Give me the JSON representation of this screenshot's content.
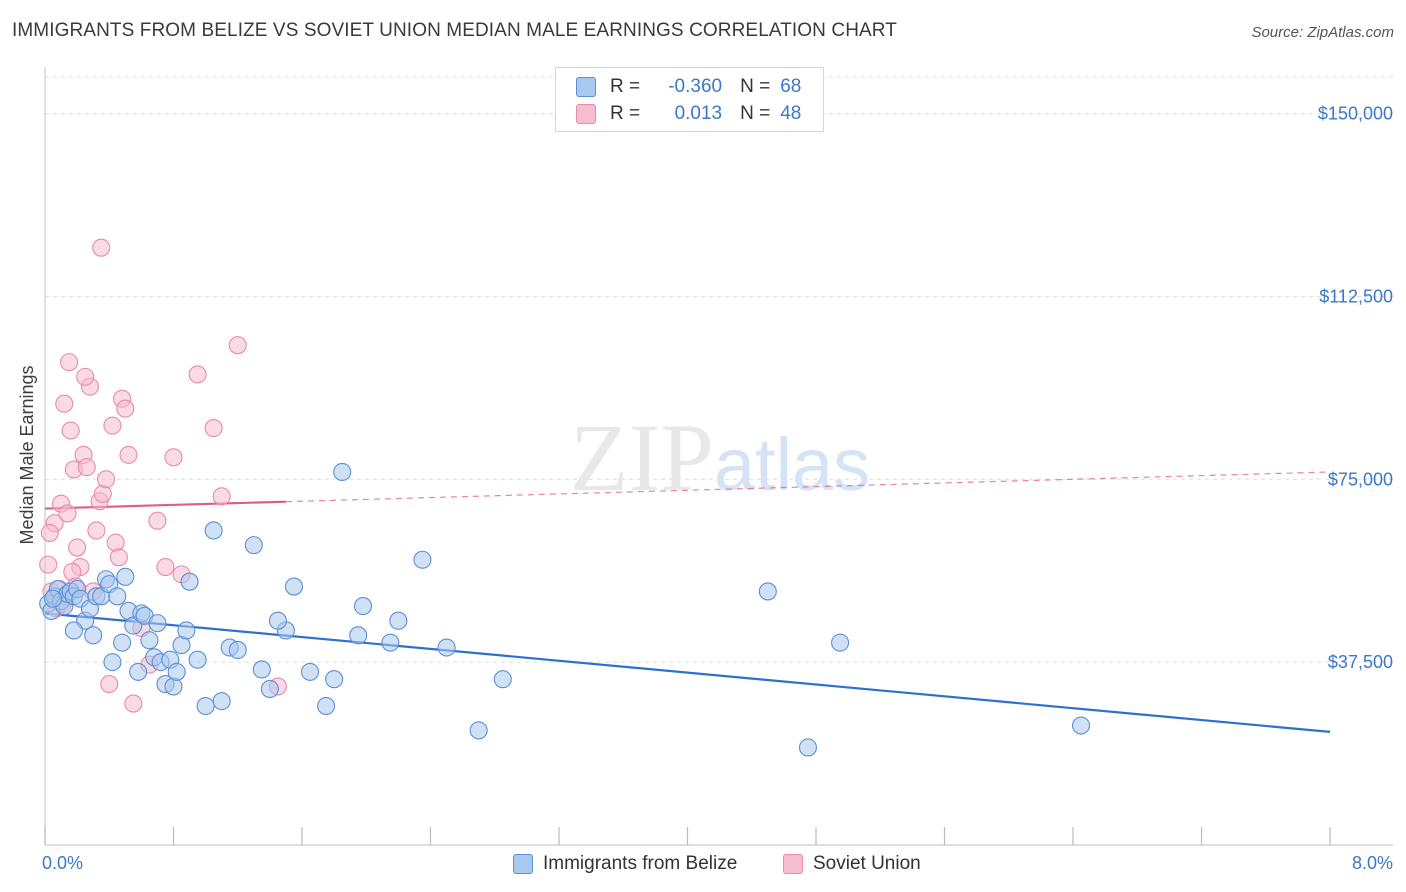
{
  "title": "IMMIGRANTS FROM BELIZE VS SOVIET UNION MEDIAN MALE EARNINGS CORRELATION CHART",
  "source": "Source: ZipAtlas.com",
  "watermark": "ZIPatlas",
  "colors": {
    "blue_fill": "#a9c8ef",
    "blue_stroke": "#5b8fd6",
    "blue_line": "#2f6fd0",
    "pink_fill": "#f6bcd0",
    "pink_stroke": "#e98aab",
    "pink_line": "#e05a8a",
    "tick_text": "#3b78c9",
    "grid": "#dddddd"
  },
  "legend": {
    "rows": [
      {
        "r_label": "R =",
        "r_value": "-0.360",
        "n_label": "N =",
        "n_value": "68"
      },
      {
        "r_label": "R =",
        "r_value": "0.013",
        "n_label": "N =",
        "n_value": "48"
      }
    ]
  },
  "chart_data": {
    "type": "scatter",
    "title": "IMMIGRANTS FROM BELIZE VS SOVIET UNION MEDIAN MALE EARNINGS CORRELATION CHART",
    "xlabel": "",
    "ylabel": "Median Male Earnings",
    "xlim": [
      0,
      8.0
    ],
    "ylim": [
      0,
      157500
    ],
    "x_tick_labels": [
      "0.0%",
      "8.0%"
    ],
    "y_ticks": [
      {
        "value": 37500,
        "label": "$37,500"
      },
      {
        "value": 75000,
        "label": "$75,000"
      },
      {
        "value": 112500,
        "label": "$112,500"
      },
      {
        "value": 150000,
        "label": "$150,000"
      }
    ],
    "series": [
      {
        "name": "Immigrants from Belize",
        "color": "blue",
        "trend": {
          "x_start": 0.0,
          "y_start": 47500,
          "x_end": 8.0,
          "y_end": 23200,
          "dashed_from": null
        },
        "points": [
          [
            0.02,
            49500
          ],
          [
            0.04,
            48000
          ],
          [
            0.06,
            51000
          ],
          [
            0.08,
            52500
          ],
          [
            0.1,
            50000
          ],
          [
            0.12,
            49000
          ],
          [
            0.14,
            51500
          ],
          [
            0.16,
            52000
          ],
          [
            0.18,
            51000
          ],
          [
            0.2,
            52500
          ],
          [
            0.22,
            50500
          ],
          [
            0.25,
            46000
          ],
          [
            0.18,
            44000
          ],
          [
            0.28,
            48500
          ],
          [
            0.3,
            43000
          ],
          [
            0.32,
            51000
          ],
          [
            0.35,
            51000
          ],
          [
            0.38,
            54500
          ],
          [
            0.4,
            53500
          ],
          [
            0.42,
            37500
          ],
          [
            0.45,
            51000
          ],
          [
            0.48,
            41500
          ],
          [
            0.5,
            55000
          ],
          [
            0.52,
            48000
          ],
          [
            0.55,
            45000
          ],
          [
            0.58,
            35500
          ],
          [
            0.6,
            47500
          ],
          [
            0.62,
            47000
          ],
          [
            0.65,
            42000
          ],
          [
            0.68,
            38500
          ],
          [
            0.7,
            45500
          ],
          [
            0.72,
            37500
          ],
          [
            0.75,
            33000
          ],
          [
            0.78,
            38000
          ],
          [
            0.8,
            32500
          ],
          [
            0.82,
            35500
          ],
          [
            0.85,
            41000
          ],
          [
            0.88,
            44000
          ],
          [
            0.9,
            54000
          ],
          [
            0.95,
            38000
          ],
          [
            1.0,
            28500
          ],
          [
            1.05,
            64500
          ],
          [
            1.1,
            29500
          ],
          [
            1.15,
            40500
          ],
          [
            1.2,
            40000
          ],
          [
            1.3,
            61500
          ],
          [
            1.35,
            36000
          ],
          [
            1.4,
            32000
          ],
          [
            1.5,
            44000
          ],
          [
            1.45,
            46000
          ],
          [
            1.55,
            53000
          ],
          [
            1.65,
            35500
          ],
          [
            1.75,
            28500
          ],
          [
            1.8,
            34000
          ],
          [
            1.85,
            76500
          ],
          [
            1.95,
            43000
          ],
          [
            1.98,
            49000
          ],
          [
            2.15,
            41500
          ],
          [
            2.2,
            46000
          ],
          [
            2.35,
            58500
          ],
          [
            2.5,
            40500
          ],
          [
            2.7,
            23500
          ],
          [
            2.85,
            34000
          ],
          [
            4.5,
            52000
          ],
          [
            4.75,
            20000
          ],
          [
            4.95,
            41500
          ],
          [
            6.45,
            24500
          ],
          [
            0.05,
            50500
          ]
        ]
      },
      {
        "name": "Soviet Union",
        "color": "pink",
        "trend": {
          "x_start": 0.0,
          "y_start": 69000,
          "x_end": 8.0,
          "y_end": 76500,
          "dashed_from": 1.5
        },
        "points": [
          [
            0.02,
            57500
          ],
          [
            0.04,
            52000
          ],
          [
            0.06,
            66000
          ],
          [
            0.08,
            50000
          ],
          [
            0.1,
            70000
          ],
          [
            0.12,
            90500
          ],
          [
            0.14,
            68000
          ],
          [
            0.16,
            85000
          ],
          [
            0.18,
            77000
          ],
          [
            0.2,
            61000
          ],
          [
            0.22,
            57000
          ],
          [
            0.24,
            80000
          ],
          [
            0.26,
            77500
          ],
          [
            0.28,
            94000
          ],
          [
            0.3,
            52000
          ],
          [
            0.32,
            64500
          ],
          [
            0.34,
            70500
          ],
          [
            0.36,
            72000
          ],
          [
            0.38,
            75000
          ],
          [
            0.4,
            33000
          ],
          [
            0.42,
            86000
          ],
          [
            0.44,
            62000
          ],
          [
            0.46,
            59000
          ],
          [
            0.48,
            91500
          ],
          [
            0.5,
            89500
          ],
          [
            0.52,
            80000
          ],
          [
            0.55,
            29000
          ],
          [
            0.6,
            44500
          ],
          [
            0.65,
            37000
          ],
          [
            0.7,
            66500
          ],
          [
            0.75,
            57000
          ],
          [
            0.8,
            79500
          ],
          [
            0.85,
            55500
          ],
          [
            0.95,
            96500
          ],
          [
            1.05,
            85500
          ],
          [
            1.1,
            71500
          ],
          [
            1.2,
            102500
          ],
          [
            1.45,
            32500
          ],
          [
            0.03,
            64000
          ],
          [
            0.15,
            99000
          ],
          [
            0.25,
            96000
          ],
          [
            0.35,
            122500
          ],
          [
            0.07,
            48500
          ],
          [
            0.09,
            52500
          ],
          [
            0.11,
            49500
          ],
          [
            0.13,
            51000
          ],
          [
            0.17,
            56000
          ],
          [
            0.19,
            53000
          ]
        ]
      }
    ]
  },
  "bottom_legend": [
    {
      "label": "Immigrants from Belize"
    },
    {
      "label": "Soviet Union"
    }
  ]
}
